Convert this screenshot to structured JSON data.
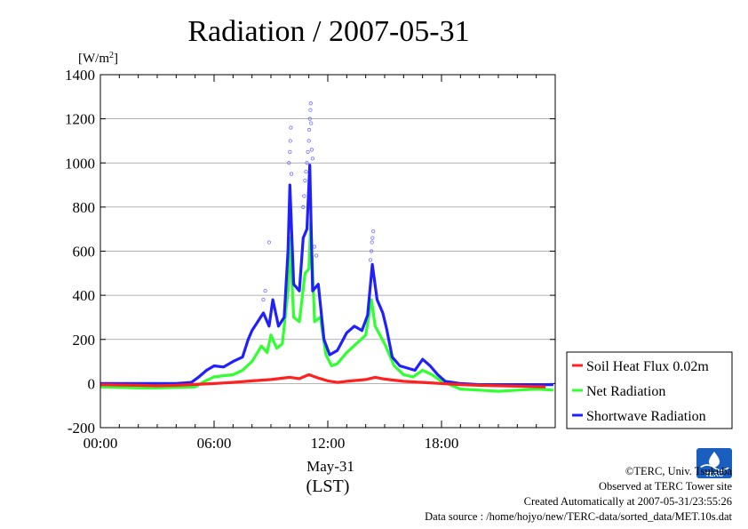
{
  "chart_data": {
    "type": "line",
    "title": "Radiation / 2007-05-31",
    "ylabel_unit": "[W/m",
    "ylabel_unit_sup": "2",
    "ylabel_unit_close": "]",
    "xlabel": "(LST)",
    "xlabel_date": "May-31",
    "ylim": [
      -200,
      1400
    ],
    "xlim_hours": [
      0,
      24
    ],
    "y_ticks": [
      -200,
      0,
      200,
      400,
      600,
      800,
      1000,
      1200,
      1400
    ],
    "x_ticks": [
      {
        "hour": 0,
        "label": "00:00"
      },
      {
        "hour": 6,
        "label": "06:00"
      },
      {
        "hour": 12,
        "label": "12:00"
      },
      {
        "hour": 18,
        "label": "18:00"
      }
    ],
    "grid": true,
    "legend_position": "right",
    "series": [
      {
        "name": "Soil Heat Flux 0.02m",
        "color": "#ff2020",
        "points": [
          [
            0,
            -5
          ],
          [
            2,
            -8
          ],
          [
            3,
            -10
          ],
          [
            4,
            -8
          ],
          [
            5,
            -4
          ],
          [
            6,
            0
          ],
          [
            7,
            5
          ],
          [
            8,
            12
          ],
          [
            9,
            18
          ],
          [
            10,
            28
          ],
          [
            10.5,
            22
          ],
          [
            11,
            40
          ],
          [
            11.5,
            25
          ],
          [
            12,
            12
          ],
          [
            12.5,
            5
          ],
          [
            13,
            10
          ],
          [
            14,
            18
          ],
          [
            14.5,
            28
          ],
          [
            15,
            20
          ],
          [
            16,
            10
          ],
          [
            17,
            5
          ],
          [
            18,
            0
          ],
          [
            19,
            -5
          ],
          [
            20,
            -8
          ],
          [
            22,
            -12
          ],
          [
            23.5,
            -15
          ]
        ]
      },
      {
        "name": "Net Radiation",
        "color": "#30ff30",
        "points": [
          [
            0,
            -15
          ],
          [
            2,
            -20
          ],
          [
            3,
            -20
          ],
          [
            4,
            -18
          ],
          [
            5,
            -15
          ],
          [
            5.5,
            10
          ],
          [
            6,
            30
          ],
          [
            7,
            40
          ],
          [
            7.5,
            60
          ],
          [
            8,
            100
          ],
          [
            8.5,
            170
          ],
          [
            8.8,
            140
          ],
          [
            9,
            220
          ],
          [
            9.3,
            160
          ],
          [
            9.6,
            180
          ],
          [
            9.9,
            420
          ],
          [
            10,
            660
          ],
          [
            10.2,
            300
          ],
          [
            10.5,
            280
          ],
          [
            10.8,
            500
          ],
          [
            11,
            520
          ],
          [
            11.1,
            730
          ],
          [
            11.3,
            280
          ],
          [
            11.6,
            300
          ],
          [
            11.9,
            130
          ],
          [
            12.2,
            80
          ],
          [
            12.5,
            90
          ],
          [
            13,
            140
          ],
          [
            13.5,
            180
          ],
          [
            14,
            220
          ],
          [
            14.3,
            380
          ],
          [
            14.5,
            260
          ],
          [
            15,
            180
          ],
          [
            15.5,
            80
          ],
          [
            16,
            40
          ],
          [
            16.5,
            30
          ],
          [
            17,
            60
          ],
          [
            17.5,
            40
          ],
          [
            18,
            10
          ],
          [
            19,
            -25
          ],
          [
            20,
            -30
          ],
          [
            21,
            -35
          ],
          [
            22,
            -30
          ],
          [
            23,
            -25
          ],
          [
            23.9,
            -30
          ]
        ]
      },
      {
        "name": "Shortwave Radiation",
        "color": "#2020ff",
        "points": [
          [
            0,
            0
          ],
          [
            2,
            0
          ],
          [
            3,
            0
          ],
          [
            4,
            0
          ],
          [
            4.8,
            5
          ],
          [
            5.2,
            30
          ],
          [
            5.6,
            60
          ],
          [
            6,
            80
          ],
          [
            6.5,
            75
          ],
          [
            7,
            100
          ],
          [
            7.5,
            120
          ],
          [
            7.8,
            200
          ],
          [
            8,
            240
          ],
          [
            8.3,
            280
          ],
          [
            8.6,
            320
          ],
          [
            8.9,
            260
          ],
          [
            9.1,
            380
          ],
          [
            9.4,
            260
          ],
          [
            9.7,
            300
          ],
          [
            9.9,
            600
          ],
          [
            10,
            900
          ],
          [
            10.2,
            450
          ],
          [
            10.5,
            420
          ],
          [
            10.7,
            660
          ],
          [
            10.9,
            700
          ],
          [
            11.05,
            990
          ],
          [
            11.2,
            420
          ],
          [
            11.5,
            450
          ],
          [
            11.8,
            200
          ],
          [
            12.1,
            130
          ],
          [
            12.5,
            150
          ],
          [
            13,
            230
          ],
          [
            13.4,
            260
          ],
          [
            13.8,
            240
          ],
          [
            14.1,
            310
          ],
          [
            14.35,
            540
          ],
          [
            14.6,
            380
          ],
          [
            14.9,
            320
          ],
          [
            15.1,
            250
          ],
          [
            15.4,
            120
          ],
          [
            15.8,
            80
          ],
          [
            16.2,
            70
          ],
          [
            16.6,
            60
          ],
          [
            17,
            110
          ],
          [
            17.4,
            80
          ],
          [
            17.8,
            40
          ],
          [
            18.2,
            10
          ],
          [
            19,
            0
          ],
          [
            20,
            -5
          ],
          [
            21,
            -5
          ],
          [
            22,
            -5
          ],
          [
            23,
            -5
          ],
          [
            23.9,
            -5
          ]
        ]
      }
    ],
    "scatter_series": {
      "of": "Shortwave Radiation",
      "color": "#6b6bff",
      "points": [
        [
          8.6,
          380
        ],
        [
          8.7,
          420
        ],
        [
          8.9,
          640
        ],
        [
          9.95,
          1000
        ],
        [
          10.0,
          1050
        ],
        [
          10.02,
          1100
        ],
        [
          10.05,
          1160
        ],
        [
          10.08,
          950
        ],
        [
          10.7,
          800
        ],
        [
          10.75,
          850
        ],
        [
          10.8,
          920
        ],
        [
          10.85,
          960
        ],
        [
          10.9,
          1000
        ],
        [
          10.95,
          1050
        ],
        [
          11.0,
          1100
        ],
        [
          11.02,
          1150
        ],
        [
          11.05,
          1200
        ],
        [
          11.08,
          1240
        ],
        [
          11.1,
          1270
        ],
        [
          11.12,
          1180
        ],
        [
          11.15,
          1060
        ],
        [
          11.2,
          1020
        ],
        [
          14.3,
          600
        ],
        [
          14.33,
          640
        ],
        [
          14.36,
          660
        ],
        [
          14.4,
          690
        ],
        [
          14.25,
          560
        ],
        [
          11.3,
          620
        ],
        [
          11.4,
          580
        ]
      ]
    }
  },
  "footer": {
    "copyright": "©TERC, Univ. Tsukuba",
    "site": "Observed at TERC Tower site",
    "created": "Created Automatically at 2007-05-31/23:55:26",
    "source": "Data source : /home/hojyo/new/TERC-data/sorted_data/MET.10s.dat"
  },
  "logo": {
    "text": "TERC",
    "color": "#1a5fc0"
  }
}
